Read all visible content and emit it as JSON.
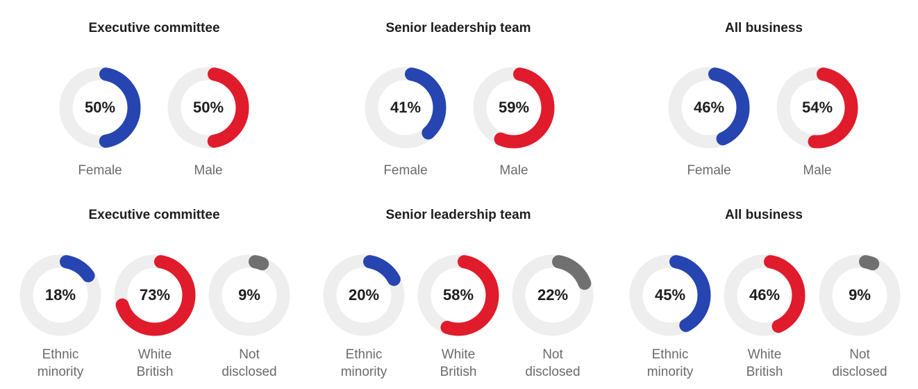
{
  "colors": {
    "female": "#2645b0",
    "male": "#e01b2b",
    "not_disclosed": "#707070",
    "track": "#eeeeee"
  },
  "chart_data": [
    {
      "type": "pie",
      "title": "Executive committee",
      "slices": [
        {
          "label": "Female",
          "value": 50,
          "display": "50%",
          "color": "#2645b0"
        },
        {
          "label": "Male",
          "value": 50,
          "display": "50%",
          "color": "#e01b2b"
        }
      ]
    },
    {
      "type": "pie",
      "title": "Senior leadership team",
      "slices": [
        {
          "label": "Female",
          "value": 41,
          "display": "41%",
          "color": "#2645b0"
        },
        {
          "label": "Male",
          "value": 59,
          "display": "59%",
          "color": "#e01b2b"
        }
      ]
    },
    {
      "type": "pie",
      "title": "All business",
      "slices": [
        {
          "label": "Female",
          "value": 46,
          "display": "46%",
          "color": "#2645b0"
        },
        {
          "label": "Male",
          "value": 54,
          "display": "54%",
          "color": "#e01b2b"
        }
      ]
    },
    {
      "type": "pie",
      "title": "Executive committee",
      "slices": [
        {
          "label": "Ethnic\nminority",
          "value": 18,
          "display": "18%",
          "color": "#2645b0"
        },
        {
          "label": "White\nBritish",
          "value": 73,
          "display": "73%",
          "color": "#e01b2b"
        },
        {
          "label": "Not\ndisclosed",
          "value": 9,
          "display": "9%",
          "color": "#707070"
        }
      ]
    },
    {
      "type": "pie",
      "title": "Senior leadership team",
      "slices": [
        {
          "label": "Ethnic\nminority",
          "value": 20,
          "display": "20%",
          "color": "#2645b0"
        },
        {
          "label": "White\nBritish",
          "value": 58,
          "display": "58%",
          "color": "#e01b2b"
        },
        {
          "label": "Not\ndisclosed",
          "value": 22,
          "display": "22%",
          "color": "#707070"
        }
      ]
    },
    {
      "type": "pie",
      "title": "All business",
      "slices": [
        {
          "label": "Ethnic\nminority",
          "value": 45,
          "display": "45%",
          "color": "#2645b0"
        },
        {
          "label": "White\nBritish",
          "value": 46,
          "display": "46%",
          "color": "#e01b2b"
        },
        {
          "label": "Not\ndisclosed",
          "value": 9,
          "display": "9%",
          "color": "#707070"
        }
      ]
    }
  ]
}
